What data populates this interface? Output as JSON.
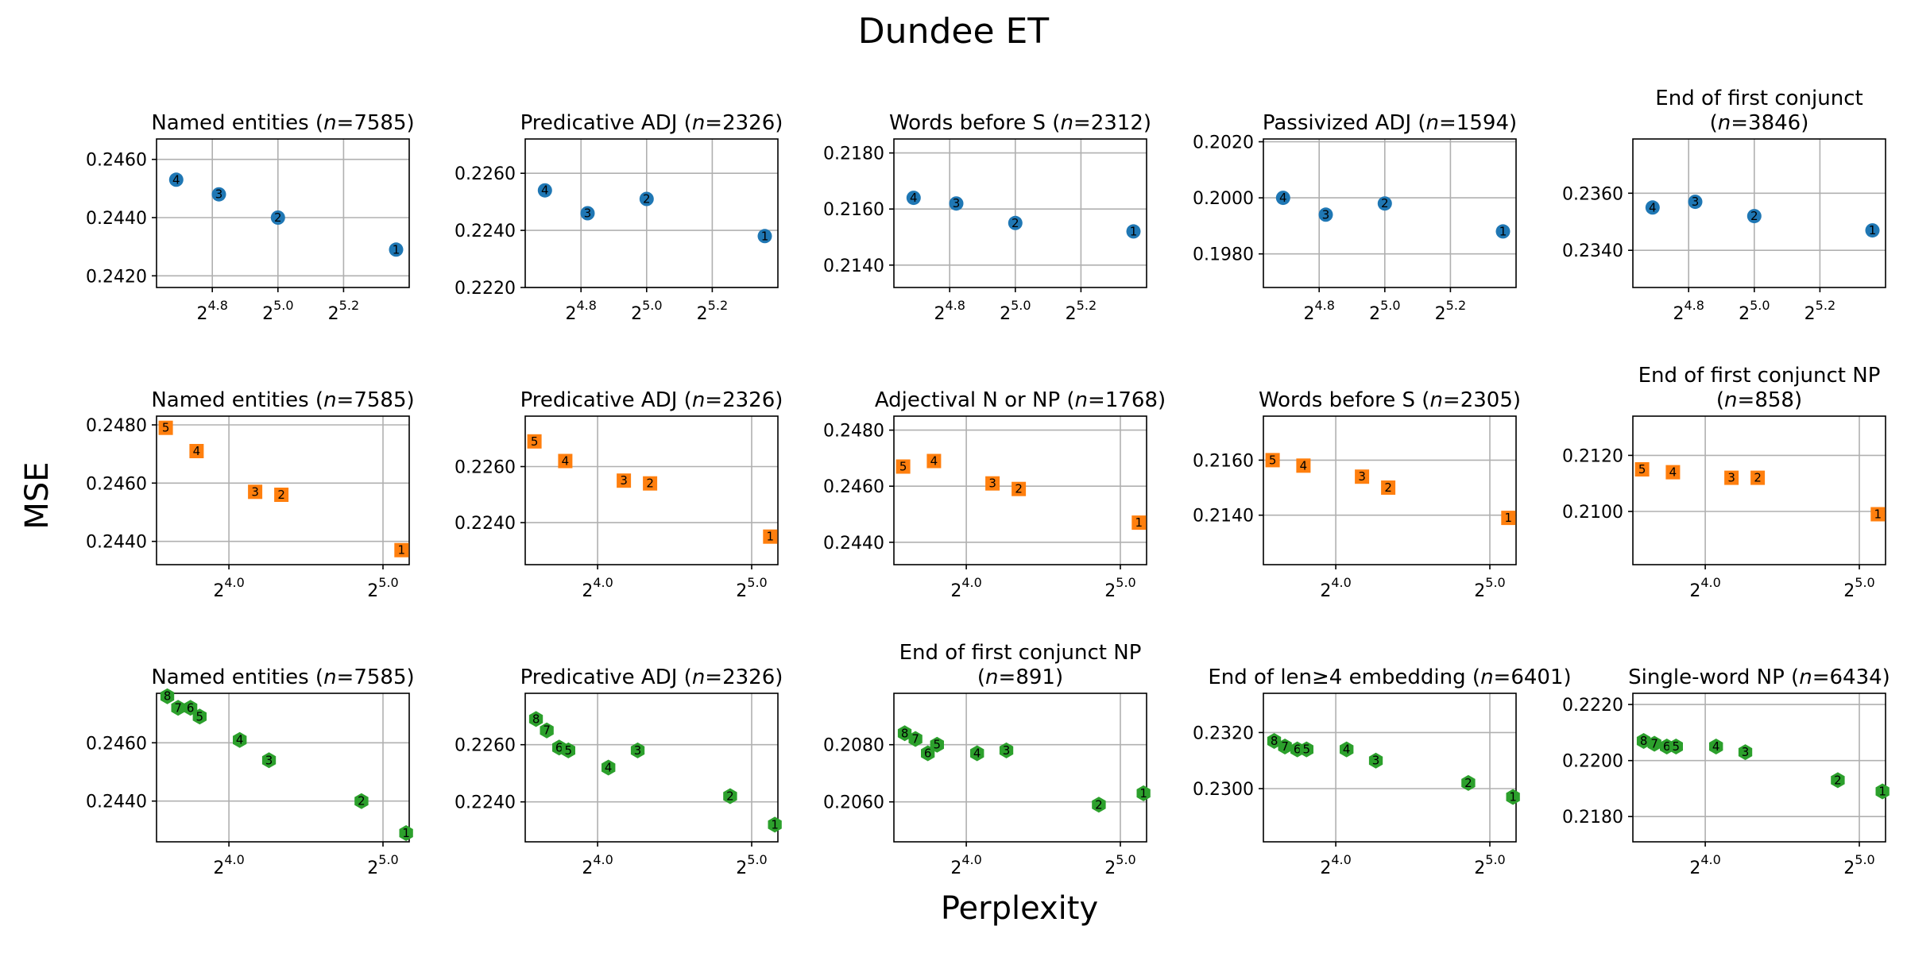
{
  "figure": {
    "title": "Dundee ET",
    "ylabel": "MSE",
    "xlabel": "Perplexity"
  },
  "chart_data": [
    {
      "type": "scatter",
      "row": 0,
      "col": 0,
      "title_pre": "Named entities (",
      "title_n": "7585",
      "title_post": ")",
      "color": "#1f77b4",
      "marker": "circle",
      "x_log2": [
        4.69,
        4.82,
        5.0,
        5.36
      ],
      "y": [
        0.2453,
        0.2448,
        0.244,
        0.2429
      ],
      "labels": [
        "4",
        "3",
        "2",
        "1"
      ],
      "xlim": [
        4.63,
        5.4
      ],
      "ylim": [
        0.2416,
        0.2467
      ],
      "xticks": [
        4.8,
        5.0,
        5.2
      ],
      "xtick_labels": [
        "4.8",
        "5.0",
        "5.2"
      ],
      "yticks": [
        0.242,
        0.244,
        0.246
      ],
      "ytick_labels": [
        "0.2420",
        "0.2440",
        "0.2460"
      ]
    },
    {
      "type": "scatter",
      "row": 0,
      "col": 1,
      "title_pre": "Predicative ADJ (",
      "title_n": "2326",
      "title_post": ")",
      "color": "#1f77b4",
      "marker": "circle",
      "x_log2": [
        4.69,
        4.82,
        5.0,
        5.36
      ],
      "y": [
        0.2254,
        0.2246,
        0.2251,
        0.2238
      ],
      "labels": [
        "4",
        "3",
        "2",
        "1"
      ],
      "xlim": [
        4.63,
        5.4
      ],
      "ylim": [
        0.222,
        0.2272
      ],
      "xticks": [
        4.8,
        5.0,
        5.2
      ],
      "xtick_labels": [
        "4.8",
        "5.0",
        "5.2"
      ],
      "yticks": [
        0.222,
        0.224,
        0.226
      ],
      "ytick_labels": [
        "0.2220",
        "0.2240",
        "0.2260"
      ]
    },
    {
      "type": "scatter",
      "row": 0,
      "col": 2,
      "title_pre": "Words before S (",
      "title_n": "2312",
      "title_post": ")",
      "color": "#1f77b4",
      "marker": "circle",
      "x_log2": [
        4.69,
        4.82,
        5.0,
        5.36
      ],
      "y": [
        0.2164,
        0.2162,
        0.2155,
        0.2152
      ],
      "labels": [
        "4",
        "3",
        "2",
        "1"
      ],
      "xlim": [
        4.63,
        5.4
      ],
      "ylim": [
        0.2132,
        0.2185
      ],
      "xticks": [
        4.8,
        5.0,
        5.2
      ],
      "xtick_labels": [
        "4.8",
        "5.0",
        "5.2"
      ],
      "yticks": [
        0.214,
        0.216,
        0.218
      ],
      "ytick_labels": [
        "0.2140",
        "0.2160",
        "0.2180"
      ]
    },
    {
      "type": "scatter",
      "row": 0,
      "col": 3,
      "title_pre": "Passivized ADJ (",
      "title_n": "1594",
      "title_post": ")",
      "color": "#1f77b4",
      "marker": "circle",
      "x_log2": [
        4.69,
        4.82,
        5.0,
        5.36
      ],
      "y": [
        0.2,
        0.1994,
        0.1998,
        0.1988
      ],
      "labels": [
        "4",
        "3",
        "2",
        "1"
      ],
      "xlim": [
        4.63,
        5.4
      ],
      "ylim": [
        0.1968,
        0.2021
      ],
      "xticks": [
        4.8,
        5.0,
        5.2
      ],
      "xtick_labels": [
        "4.8",
        "5.0",
        "5.2"
      ],
      "yticks": [
        0.198,
        0.2,
        0.202
      ],
      "ytick_labels": [
        "0.1980",
        "0.2000",
        "0.2020"
      ]
    },
    {
      "type": "scatter",
      "row": 0,
      "col": 4,
      "title_pre": "End of first conjunct",
      "title_l2_pre": "(",
      "title_n": "3846",
      "title_post": ")",
      "color": "#1f77b4",
      "marker": "circle",
      "x_log2": [
        4.69,
        4.82,
        5.0,
        5.36
      ],
      "y": [
        0.2355,
        0.2357,
        0.2352,
        0.2347
      ],
      "labels": [
        "4",
        "3",
        "2",
        "1"
      ],
      "xlim": [
        4.63,
        5.4
      ],
      "ylim": [
        0.2327,
        0.2379
      ],
      "xticks": [
        4.8,
        5.0,
        5.2
      ],
      "xtick_labels": [
        "4.8",
        "5.0",
        "5.2"
      ],
      "yticks": [
        0.234,
        0.236
      ],
      "ytick_labels": [
        "0.2340",
        "0.2360"
      ]
    },
    {
      "type": "scatter",
      "row": 1,
      "col": 0,
      "title_pre": "Named entities (",
      "title_n": "7585",
      "title_post": ")",
      "color": "#ff7f0e",
      "marker": "square",
      "x_log2": [
        3.59,
        3.79,
        4.17,
        4.34,
        5.12
      ],
      "y": [
        0.2479,
        0.2471,
        0.2457,
        0.2456,
        0.2437
      ],
      "labels": [
        "5",
        "4",
        "3",
        "2",
        "1"
      ],
      "xlim": [
        3.53,
        5.17
      ],
      "ylim": [
        0.2432,
        0.2483
      ],
      "xticks": [
        4.0,
        5.0
      ],
      "xtick_labels": [
        "4.0",
        "5.0"
      ],
      "yticks": [
        0.244,
        0.246,
        0.248
      ],
      "ytick_labels": [
        "0.2440",
        "0.2460",
        "0.2480"
      ]
    },
    {
      "type": "scatter",
      "row": 1,
      "col": 1,
      "title_pre": "Predicative ADJ (",
      "title_n": "2326",
      "title_post": ")",
      "color": "#ff7f0e",
      "marker": "square",
      "x_log2": [
        3.59,
        3.79,
        4.17,
        4.34,
        5.12
      ],
      "y": [
        0.2269,
        0.2262,
        0.2255,
        0.2254,
        0.2235
      ],
      "labels": [
        "5",
        "4",
        "3",
        "2",
        "1"
      ],
      "xlim": [
        3.53,
        5.17
      ],
      "ylim": [
        0.2225,
        0.2278
      ],
      "xticks": [
        4.0,
        5.0
      ],
      "xtick_labels": [
        "4.0",
        "5.0"
      ],
      "yticks": [
        0.224,
        0.226
      ],
      "ytick_labels": [
        "0.2240",
        "0.2260"
      ]
    },
    {
      "type": "scatter",
      "row": 1,
      "col": 2,
      "title_pre": "Adjectival N or NP (",
      "title_n": "1768",
      "title_post": ")",
      "color": "#ff7f0e",
      "marker": "square",
      "x_log2": [
        3.59,
        3.79,
        4.17,
        4.34,
        5.12
      ],
      "y": [
        0.2467,
        0.2469,
        0.2461,
        0.2459,
        0.2447
      ],
      "labels": [
        "5",
        "4",
        "3",
        "2",
        "1"
      ],
      "xlim": [
        3.53,
        5.17
      ],
      "ylim": [
        0.2432,
        0.2485
      ],
      "xticks": [
        4.0,
        5.0
      ],
      "xtick_labels": [
        "4.0",
        "5.0"
      ],
      "yticks": [
        0.244,
        0.246,
        0.248
      ],
      "ytick_labels": [
        "0.2440",
        "0.2460",
        "0.2480"
      ]
    },
    {
      "type": "scatter",
      "row": 1,
      "col": 3,
      "title_pre": "Words before S (",
      "title_n": "2305",
      "title_post": ")",
      "color": "#ff7f0e",
      "marker": "square",
      "x_log2": [
        3.59,
        3.79,
        4.17,
        4.34,
        5.12
      ],
      "y": [
        0.216,
        0.2158,
        0.2154,
        0.215,
        0.2139
      ],
      "labels": [
        "5",
        "4",
        "3",
        "2",
        "1"
      ],
      "xlim": [
        3.53,
        5.17
      ],
      "ylim": [
        0.2122,
        0.2176
      ],
      "xticks": [
        4.0,
        5.0
      ],
      "xtick_labels": [
        "4.0",
        "5.0"
      ],
      "yticks": [
        0.214,
        0.216
      ],
      "ytick_labels": [
        "0.2140",
        "0.2160"
      ]
    },
    {
      "type": "scatter",
      "row": 1,
      "col": 4,
      "title_pre": "End of first conjunct NP",
      "title_l2_pre": "(",
      "title_n": "858",
      "title_post": ")",
      "color": "#ff7f0e",
      "marker": "square",
      "x_log2": [
        3.59,
        3.79,
        4.17,
        4.34,
        5.12
      ],
      "y": [
        0.2115,
        0.2114,
        0.2112,
        0.2112,
        0.2099
      ],
      "labels": [
        "5",
        "4",
        "3",
        "2",
        "1"
      ],
      "xlim": [
        3.53,
        5.17
      ],
      "ylim": [
        0.2081,
        0.2134
      ],
      "xticks": [
        4.0,
        5.0
      ],
      "xtick_labels": [
        "4.0",
        "5.0"
      ],
      "yticks": [
        0.21,
        0.212
      ],
      "ytick_labels": [
        "0.2100",
        "0.2120"
      ]
    },
    {
      "type": "scatter",
      "row": 2,
      "col": 0,
      "title_pre": "Named entities (",
      "title_n": "7585",
      "title_post": ")",
      "color": "#2ca02c",
      "marker": "hexagon",
      "x_log2": [
        3.6,
        3.67,
        3.75,
        3.81,
        4.07,
        4.26,
        4.86,
        5.15
      ],
      "y": [
        0.2476,
        0.2472,
        0.2472,
        0.2469,
        0.2461,
        0.2454,
        0.244,
        0.2429
      ],
      "labels": [
        "8",
        "7",
        "6",
        "5",
        "4",
        "3",
        "2",
        "1"
      ],
      "xlim": [
        3.53,
        5.17
      ],
      "ylim": [
        0.2426,
        0.2477
      ],
      "xticks": [
        4.0,
        5.0
      ],
      "xtick_labels": [
        "4.0",
        "5.0"
      ],
      "yticks": [
        0.244,
        0.246
      ],
      "ytick_labels": [
        "0.2440",
        "0.2460"
      ]
    },
    {
      "type": "scatter",
      "row": 2,
      "col": 1,
      "title_pre": "Predicative ADJ (",
      "title_n": "2326",
      "title_post": ")",
      "color": "#2ca02c",
      "marker": "hexagon",
      "x_log2": [
        3.6,
        3.67,
        3.75,
        3.81,
        4.07,
        4.26,
        4.86,
        5.15
      ],
      "y": [
        0.2269,
        0.2265,
        0.2259,
        0.2258,
        0.2252,
        0.2258,
        0.2242,
        0.2232
      ],
      "labels": [
        "8",
        "7",
        "6",
        "5",
        "4",
        "3",
        "2",
        "1"
      ],
      "xlim": [
        3.53,
        5.17
      ],
      "ylim": [
        0.2226,
        0.2278
      ],
      "xticks": [
        4.0,
        5.0
      ],
      "xtick_labels": [
        "4.0",
        "5.0"
      ],
      "yticks": [
        0.224,
        0.226
      ],
      "ytick_labels": [
        "0.2240",
        "0.2260"
      ]
    },
    {
      "type": "scatter",
      "row": 2,
      "col": 2,
      "title_pre": "End of first conjunct NP",
      "title_l2_pre": "(",
      "title_n": "891",
      "title_post": ")",
      "color": "#2ca02c",
      "marker": "hexagon",
      "x_log2": [
        3.6,
        3.67,
        3.75,
        3.81,
        4.07,
        4.26,
        4.86,
        5.15
      ],
      "y": [
        0.2084,
        0.2082,
        0.2077,
        0.208,
        0.2077,
        0.2078,
        0.2059,
        0.2063
      ],
      "labels": [
        "8",
        "7",
        "6",
        "5",
        "4",
        "3",
        "2",
        "1"
      ],
      "xlim": [
        3.53,
        5.17
      ],
      "ylim": [
        0.2046,
        0.2098
      ],
      "xticks": [
        4.0,
        5.0
      ],
      "xtick_labels": [
        "4.0",
        "5.0"
      ],
      "yticks": [
        0.206,
        0.208
      ],
      "ytick_labels": [
        "0.2060",
        "0.2080"
      ]
    },
    {
      "type": "scatter",
      "row": 2,
      "col": 3,
      "title_pre": "End of len≥4 embedding (",
      "title_n": "6401",
      "title_post": ")",
      "color": "#2ca02c",
      "marker": "hexagon",
      "x_log2": [
        3.6,
        3.67,
        3.75,
        3.81,
        4.07,
        4.26,
        4.86,
        5.15
      ],
      "y": [
        0.2317,
        0.2315,
        0.2314,
        0.2314,
        0.2314,
        0.231,
        0.2302,
        0.2297
      ],
      "labels": [
        "8",
        "7",
        "6",
        "5",
        "4",
        "3",
        "2",
        "1"
      ],
      "xlim": [
        3.53,
        5.17
      ],
      "ylim": [
        0.2281,
        0.2334
      ],
      "xticks": [
        4.0,
        5.0
      ],
      "xtick_labels": [
        "4.0",
        "5.0"
      ],
      "yticks": [
        0.23,
        0.232
      ],
      "ytick_labels": [
        "0.2300",
        "0.2320"
      ]
    },
    {
      "type": "scatter",
      "row": 2,
      "col": 4,
      "title_pre": "Single-word NP (",
      "title_n": "6434",
      "title_post": ")",
      "color": "#2ca02c",
      "marker": "hexagon",
      "x_log2": [
        3.6,
        3.67,
        3.75,
        3.81,
        4.07,
        4.26,
        4.86,
        5.15
      ],
      "y": [
        0.2207,
        0.2206,
        0.2205,
        0.2205,
        0.2205,
        0.2203,
        0.2193,
        0.2189
      ],
      "labels": [
        "8",
        "7",
        "6",
        "5",
        "4",
        "3",
        "2",
        "1"
      ],
      "xlim": [
        3.53,
        5.17
      ],
      "ylim": [
        0.2171,
        0.2224
      ],
      "xticks": [
        4.0,
        5.0
      ],
      "xtick_labels": [
        "4.0",
        "5.0"
      ],
      "yticks": [
        0.218,
        0.22,
        0.222
      ],
      "ytick_labels": [
        "0.2180",
        "0.2200",
        "0.2220"
      ]
    }
  ]
}
